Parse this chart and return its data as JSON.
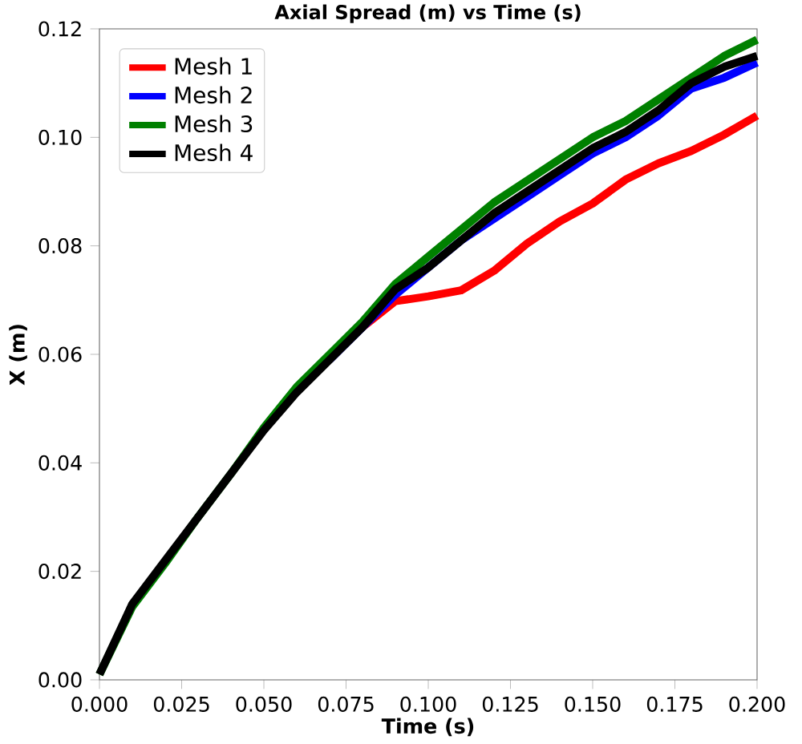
{
  "chart_data": {
    "type": "line",
    "title": "Axial Spread (m) vs Time (s)",
    "xlabel": "Time (s)",
    "ylabel": "X (m)",
    "x": [
      0,
      0.01,
      0.02,
      0.03,
      0.04,
      0.05,
      0.06,
      0.07,
      0.08,
      0.09,
      0.1,
      0.11,
      0.12,
      0.13,
      0.14,
      0.15,
      0.16,
      0.17,
      0.18,
      0.19,
      0.2
    ],
    "series": [
      {
        "name": "Mesh 1",
        "color": "#ff0000",
        "values": [
          null,
          null,
          null,
          null,
          null,
          null,
          null,
          null,
          0.065,
          0.0698,
          0.0707,
          0.0718,
          0.0754,
          0.0804,
          0.0845,
          0.0878,
          0.0922,
          0.0952,
          0.0975,
          0.1005,
          0.104
        ]
      },
      {
        "name": "Mesh 2",
        "color": "#0000ff",
        "values": [
          null,
          null,
          null,
          null,
          null,
          null,
          null,
          0.059,
          0.065,
          0.071,
          0.076,
          0.081,
          0.085,
          0.089,
          0.093,
          0.097,
          0.1,
          0.104,
          0.109,
          0.111,
          0.1138
        ]
      },
      {
        "name": "Mesh 3",
        "color": "#008000",
        "values": [
          0.001,
          0.0135,
          0.0215,
          0.03,
          0.038,
          0.0465,
          0.054,
          0.06,
          0.066,
          0.073,
          0.078,
          0.083,
          0.088,
          0.092,
          0.096,
          0.1,
          0.103,
          0.107,
          0.111,
          0.115,
          0.118
        ]
      },
      {
        "name": "Mesh 4",
        "color": "#000000",
        "values": [
          0.001,
          0.014,
          0.022,
          0.03,
          0.038,
          0.046,
          0.053,
          0.059,
          0.065,
          0.072,
          0.076,
          0.081,
          0.086,
          0.09,
          0.094,
          0.098,
          0.101,
          0.105,
          0.11,
          0.113,
          0.115
        ]
      }
    ],
    "xlim": [
      0,
      0.2
    ],
    "ylim": [
      0,
      0.12
    ],
    "xticks": [
      {
        "value": 0,
        "label": "0.000"
      },
      0.025,
      {
        "value": 0.05,
        "label": "0.050"
      },
      0.075,
      {
        "value": 0.1,
        "label": "0.100"
      },
      0.125,
      {
        "value": 0.15,
        "label": "0.150"
      },
      0.175,
      {
        "value": 0.2,
        "label": "0.200"
      }
    ],
    "yticks": [
      {
        "value": 0,
        "label": "0.00"
      },
      0.02,
      0.04,
      0.06,
      0.08,
      {
        "value": 0.1,
        "label": "0.10"
      },
      {
        "value": 0.12,
        "label": "0.12"
      }
    ],
    "legend": "top left",
    "grid": false,
    "marker": "none",
    "line_style": "solid"
  }
}
